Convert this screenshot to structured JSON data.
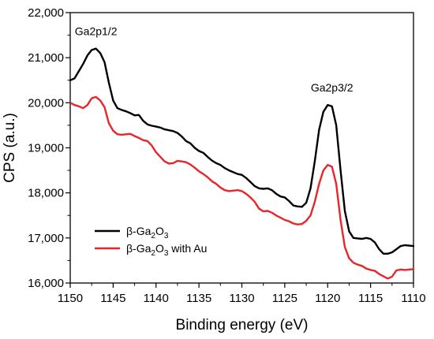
{
  "chart_data": {
    "type": "line",
    "xlabel": "Binding energy (eV)",
    "ylabel": "CPS (a.u.)",
    "xlim": [
      1150,
      1110
    ],
    "ylim": [
      16000,
      22000
    ],
    "x_reversed": true,
    "x_ticks": [
      1150,
      1145,
      1140,
      1135,
      1130,
      1125,
      1120,
      1115,
      1110
    ],
    "y_ticks": [
      16000,
      17000,
      18000,
      19000,
      20000,
      21000,
      22000
    ],
    "y_tick_labels": [
      "16,000",
      "17,000",
      "18,000",
      "19,000",
      "20,000",
      "21,000",
      "22,000"
    ],
    "grid": false,
    "legend_position": "bottom-left",
    "annotations": [
      {
        "text": "Ga2p1/2",
        "x": 1147,
        "y": 21500
      },
      {
        "text": "Ga2p3/2",
        "x": 1119.5,
        "y": 20250
      }
    ],
    "series": [
      {
        "name": "β-Ga2O3",
        "legend_main": "β-Ga",
        "legend_sub1": "2",
        "legend_mid": "O",
        "legend_sub2": "3",
        "legend_tail": "",
        "color": "#000000",
        "x": [
          1150,
          1149.5,
          1149,
          1148.5,
          1148,
          1147.5,
          1147,
          1146.5,
          1146,
          1145.5,
          1145,
          1144.5,
          1144,
          1143.5,
          1143,
          1142.5,
          1142,
          1141.5,
          1141,
          1140.5,
          1140,
          1139.5,
          1139,
          1138.5,
          1138,
          1137.5,
          1137,
          1136.5,
          1136,
          1135.5,
          1135,
          1134.5,
          1134,
          1133.5,
          1133,
          1132.5,
          1132,
          1131.5,
          1131,
          1130.5,
          1130,
          1129.5,
          1129,
          1128.5,
          1128,
          1127.5,
          1127,
          1126.5,
          1126,
          1125.5,
          1125,
          1124.5,
          1124,
          1123.5,
          1123,
          1122.5,
          1122,
          1121.5,
          1121,
          1120.5,
          1120,
          1119.5,
          1119,
          1118.5,
          1118,
          1117.5,
          1117,
          1116.5,
          1116,
          1115.5,
          1115,
          1114.5,
          1114,
          1113.5,
          1113,
          1112.5,
          1112,
          1111.5,
          1111,
          1110.5,
          1110
        ],
        "y": [
          20500,
          20540,
          20700,
          20860,
          21050,
          21170,
          21200,
          21100,
          20900,
          20450,
          20050,
          19880,
          19840,
          19810,
          19770,
          19720,
          19730,
          19600,
          19520,
          19490,
          19470,
          19450,
          19410,
          19390,
          19370,
          19330,
          19250,
          19150,
          19100,
          19000,
          18930,
          18890,
          18800,
          18720,
          18660,
          18620,
          18550,
          18500,
          18460,
          18420,
          18400,
          18330,
          18240,
          18150,
          18100,
          18090,
          18100,
          18060,
          17980,
          17920,
          17900,
          17820,
          17720,
          17700,
          17690,
          17780,
          18100,
          18700,
          19400,
          19800,
          19950,
          19920,
          19500,
          18500,
          17600,
          17150,
          17000,
          16990,
          16980,
          17000,
          16980,
          16900,
          16750,
          16650,
          16650,
          16680,
          16750,
          16820,
          16840,
          16830,
          16820
        ]
      },
      {
        "name": "β-Ga2O3 with Au",
        "legend_main": "β-Ga",
        "legend_sub1": "2",
        "legend_mid": "O",
        "legend_sub2": "3",
        "legend_tail": " with Au",
        "color": "#e8262a",
        "x": [
          1150,
          1149.5,
          1149,
          1148.5,
          1148,
          1147.5,
          1147,
          1146.5,
          1146,
          1145.5,
          1145,
          1144.5,
          1144,
          1143.5,
          1143,
          1142.5,
          1142,
          1141.5,
          1141,
          1140.5,
          1140,
          1139.5,
          1139,
          1138.5,
          1138,
          1137.5,
          1137,
          1136.5,
          1136,
          1135.5,
          1135,
          1134.5,
          1134,
          1133.5,
          1133,
          1132.5,
          1132,
          1131.5,
          1131,
          1130.5,
          1130,
          1129.5,
          1129,
          1128.5,
          1128,
          1127.5,
          1127,
          1126.5,
          1126,
          1125.5,
          1125,
          1124.5,
          1124,
          1123.5,
          1123,
          1122.5,
          1122,
          1121.5,
          1121,
          1120.5,
          1120,
          1119.5,
          1119,
          1118.5,
          1118,
          1117.5,
          1117,
          1116.5,
          1116,
          1115.5,
          1115,
          1114.5,
          1114,
          1113.5,
          1113,
          1112.5,
          1112,
          1111.5,
          1111,
          1110.5,
          1110
        ],
        "y": [
          20000,
          19950,
          19920,
          19880,
          19950,
          20100,
          20130,
          20050,
          19900,
          19550,
          19380,
          19300,
          19290,
          19300,
          19310,
          19260,
          19220,
          19170,
          19150,
          19050,
          18900,
          18800,
          18700,
          18650,
          18660,
          18710,
          18700,
          18680,
          18630,
          18560,
          18480,
          18420,
          18350,
          18260,
          18200,
          18120,
          18060,
          18040,
          18050,
          18060,
          18040,
          17980,
          17900,
          17800,
          17650,
          17590,
          17600,
          17560,
          17500,
          17450,
          17400,
          17370,
          17320,
          17300,
          17310,
          17380,
          17500,
          17800,
          18200,
          18500,
          18620,
          18580,
          18200,
          17400,
          16800,
          16550,
          16450,
          16410,
          16380,
          16320,
          16290,
          16270,
          16200,
          16150,
          16100,
          16140,
          16280,
          16300,
          16290,
          16300,
          16310
        ]
      }
    ]
  }
}
